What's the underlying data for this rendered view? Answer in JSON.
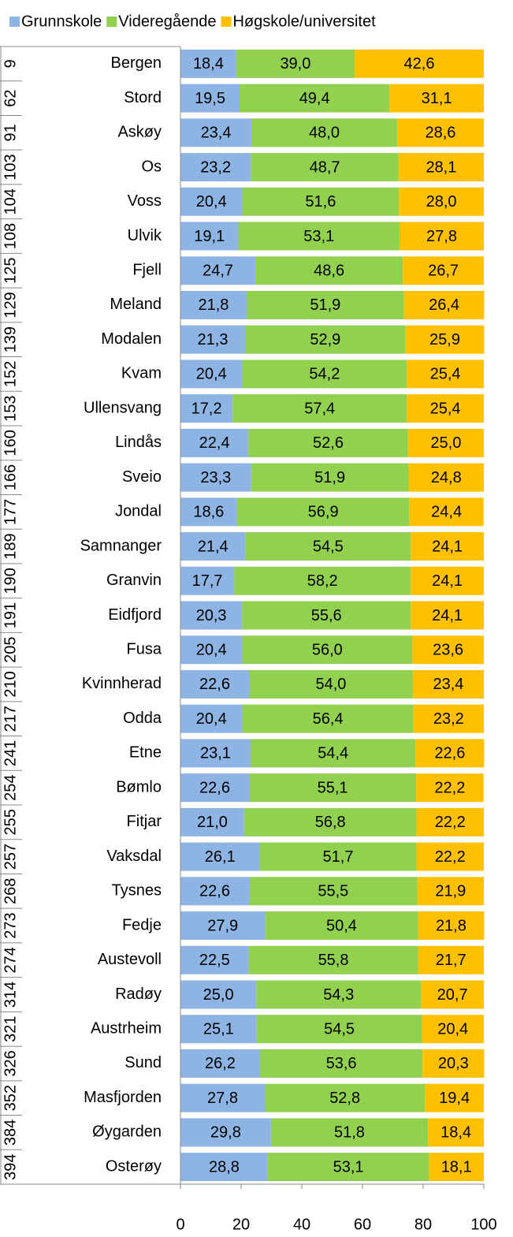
{
  "chart_data": {
    "type": "stacked_bar_horizontal",
    "ranks": [
      "9",
      "62",
      "91",
      "103",
      "104",
      "108",
      "125",
      "129",
      "139",
      "152",
      "153",
      "160",
      "166",
      "177",
      "189",
      "190",
      "191",
      "205",
      "210",
      "217",
      "241",
      "254",
      "255",
      "257",
      "268",
      "273",
      "274",
      "314",
      "321",
      "326",
      "352",
      "384",
      "394"
    ],
    "categories": [
      "Bergen",
      "Stord",
      "Askøy",
      "Os",
      "Voss",
      "Ulvik",
      "Fjell",
      "Meland",
      "Modalen",
      "Kvam",
      "Ullensvang",
      "Lindås",
      "Sveio",
      "Jondal",
      "Samnanger",
      "Granvin",
      "Eidfjord",
      "Fusa",
      "Kvinnherad",
      "Odda",
      "Etne",
      "Bømlo",
      "Fitjar",
      "Vaksdal",
      "Tysnes",
      "Fedje",
      "Austevoll",
      "Radøy",
      "Austrheim",
      "Sund",
      "Masfjorden",
      "Øygarden",
      "Osterøy"
    ],
    "series": [
      {
        "name": "Grunnskole",
        "color": "#8eb4e3",
        "values": [
          18.4,
          19.5,
          23.4,
          23.2,
          20.4,
          19.1,
          24.7,
          21.8,
          21.3,
          20.4,
          17.2,
          22.4,
          23.3,
          18.6,
          21.4,
          17.7,
          20.3,
          20.4,
          22.6,
          20.4,
          23.1,
          22.6,
          21.0,
          26.1,
          22.6,
          27.9,
          22.5,
          25.0,
          25.1,
          26.2,
          27.8,
          29.8,
          28.8
        ],
        "value_labels": [
          "18,4",
          "19,5",
          "23,4",
          "23,2",
          "20,4",
          "19,1",
          "24,7",
          "21,8",
          "21,3",
          "20,4",
          "17,2",
          "22,4",
          "23,3",
          "18,6",
          "21,4",
          "17,7",
          "20,3",
          "20,4",
          "22,6",
          "20,4",
          "23,1",
          "22,6",
          "21,0",
          "26,1",
          "22,6",
          "27,9",
          "22,5",
          "25,0",
          "25,1",
          "26,2",
          "27,8",
          "29,8",
          "28,8"
        ]
      },
      {
        "name": "Videregående",
        "color": "#92d050",
        "values": [
          39.0,
          49.4,
          48.0,
          48.7,
          51.6,
          53.1,
          48.6,
          51.9,
          52.9,
          54.2,
          57.4,
          52.6,
          51.9,
          56.9,
          54.5,
          58.2,
          55.6,
          56.0,
          54.0,
          56.4,
          54.4,
          55.1,
          56.8,
          51.7,
          55.5,
          50.4,
          55.8,
          54.3,
          54.5,
          53.6,
          52.8,
          51.8,
          53.1
        ],
        "value_labels": [
          "39,0",
          "49,4",
          "48,0",
          "48,7",
          "51,6",
          "53,1",
          "48,6",
          "51,9",
          "52,9",
          "54,2",
          "57,4",
          "52,6",
          "51,9",
          "56,9",
          "54,5",
          "58,2",
          "55,6",
          "56,0",
          "54,0",
          "56,4",
          "54,4",
          "55,1",
          "56,8",
          "51,7",
          "55,5",
          "50,4",
          "55,8",
          "54,3",
          "54,5",
          "53,6",
          "52,8",
          "51,8",
          "53,1"
        ]
      },
      {
        "name": "Høgskole/universitet",
        "color": "#ffc000",
        "values": [
          42.6,
          31.1,
          28.6,
          28.1,
          28.0,
          27.8,
          26.7,
          26.4,
          25.9,
          25.4,
          25.4,
          25.0,
          24.8,
          24.4,
          24.1,
          24.1,
          24.1,
          23.6,
          23.4,
          23.2,
          22.6,
          22.2,
          22.2,
          22.2,
          21.9,
          21.8,
          21.7,
          20.7,
          20.4,
          20.3,
          19.4,
          18.4,
          18.1
        ],
        "value_labels": [
          "42,6",
          "31,1",
          "28,6",
          "28,1",
          "28,0",
          "27,8",
          "26,7",
          "26,4",
          "25,9",
          "25,4",
          "25,4",
          "25,0",
          "24,8",
          "24,4",
          "24,1",
          "24,1",
          "24,1",
          "23,6",
          "23,4",
          "23,2",
          "22,6",
          "22,2",
          "22,2",
          "22,2",
          "21,9",
          "21,8",
          "21,7",
          "20,7",
          "20,4",
          "20,3",
          "19,4",
          "18,4",
          "18,1"
        ]
      }
    ],
    "xlim": [
      0,
      100
    ],
    "xticks": [
      0,
      20,
      40,
      60,
      80,
      100
    ],
    "legend": "top"
  }
}
